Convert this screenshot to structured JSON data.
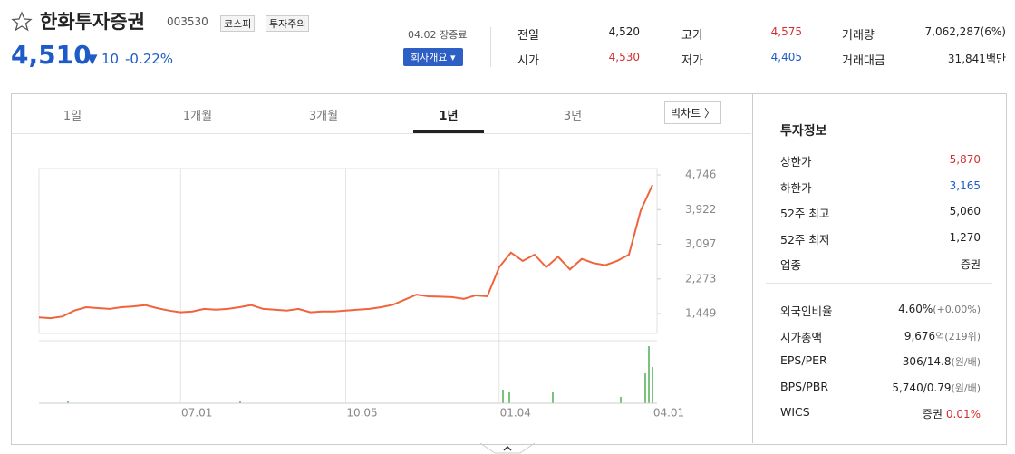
{
  "header": {
    "name": "한화투자증권",
    "code": "003530",
    "badges": [
      "코스피",
      "투자주의"
    ],
    "price": "4,510",
    "change": "10",
    "change_pct": "-0.22%",
    "status": "04.02 장종료",
    "company_button": "회사개요"
  },
  "quote": [
    [
      "전일",
      "4,520",
      "고가",
      "4,575",
      "거래량",
      "7,062,287(6%)"
    ],
    [
      "시가",
      "4,530",
      "저가",
      "4,405",
      "거래대금",
      "31,841백만"
    ]
  ],
  "tabs": [
    "1일",
    "1개월",
    "3개월",
    "1년",
    "3년"
  ],
  "big_chart": "빅차트",
  "info": {
    "title": "투자정보",
    "rows1": [
      [
        "상한가",
        "5,870"
      ],
      [
        "하한가",
        "3,165"
      ],
      [
        "52주 최고",
        "5,060"
      ],
      [
        "52주 최저",
        "1,270"
      ],
      [
        "업종",
        "증권"
      ]
    ],
    "rows2": [
      [
        "외국인비율",
        "4.60%",
        "(+0.00%)"
      ],
      [
        "시가총액",
        "9,676",
        "억(219위)"
      ],
      [
        "EPS/PER",
        "306/14.8",
        "(원/배)"
      ],
      [
        "BPS/PBR",
        "5,740/0.79",
        "(원/배)"
      ],
      [
        "WICS",
        "증권",
        "0.01%"
      ]
    ]
  },
  "chart_data": {
    "type": "line",
    "color": "#f0643c",
    "categories": [
      null,
      null,
      null,
      null,
      null,
      null,
      null,
      null,
      null,
      null,
      null,
      null,
      "07.01",
      null,
      null,
      null,
      null,
      null,
      null,
      null,
      null,
      null,
      null,
      null,
      null,
      null,
      "10.05",
      null,
      null,
      null,
      null,
      null,
      null,
      null,
      null,
      null,
      null,
      null,
      null,
      "01.04",
      null,
      null,
      null,
      null,
      null,
      null,
      null,
      null,
      null,
      null,
      null,
      null,
      "04.01"
    ],
    "values": [
      1360,
      1340,
      1380,
      1520,
      1600,
      1580,
      1560,
      1600,
      1620,
      1650,
      1580,
      1520,
      1480,
      1500,
      1560,
      1540,
      1560,
      1600,
      1650,
      1560,
      1540,
      1520,
      1560,
      1480,
      1500,
      1500,
      1520,
      1540,
      1560,
      1600,
      1660,
      1780,
      1900,
      1860,
      1850,
      1840,
      1800,
      1880,
      1860,
      2550,
      2900,
      2700,
      2850,
      2550,
      2800,
      2500,
      2750,
      2650,
      2600,
      2700,
      2850,
      3900,
      4510
    ],
    "ylim": [
      976,
      4897
    ],
    "yticks": [
      {
        "value": 4746,
        "label": "4,746"
      },
      {
        "value": 3922,
        "label": "3,922"
      },
      {
        "value": 3097,
        "label": "3,097"
      },
      {
        "value": 2273,
        "label": "2,273"
      },
      {
        "value": 1449,
        "label": "1,449"
      }
    ]
  }
}
